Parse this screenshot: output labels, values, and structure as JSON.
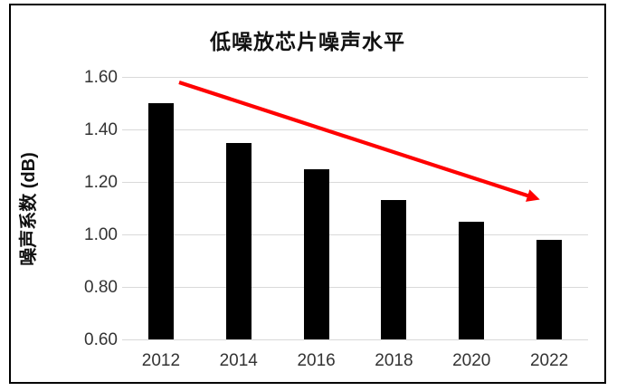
{
  "chart_data": {
    "type": "bar",
    "title": "低噪放芯片噪声水平",
    "ylabel": "噪声系数 (dB)",
    "xlabel": "",
    "categories": [
      "2012",
      "2014",
      "2016",
      "2018",
      "2020",
      "2022"
    ],
    "values": [
      1.5,
      1.35,
      1.25,
      1.13,
      1.05,
      0.98
    ],
    "ylim": [
      0.6,
      1.6
    ],
    "ytick_step": 0.2,
    "ytick_labels": [
      "0.60",
      "0.80",
      "1.00",
      "1.20",
      "1.40",
      "1.60"
    ],
    "grid": true,
    "legend": "none",
    "bar_color": "#000000",
    "gridline_color": "#d9d9d9",
    "tick_text_color": "#333333",
    "annotation": {
      "type": "arrow",
      "color": "#ff0000",
      "note": "downward trend arrow from above 2012 bar to above 2022 bar",
      "start_value": 1.58,
      "end_value": 1.13
    }
  }
}
